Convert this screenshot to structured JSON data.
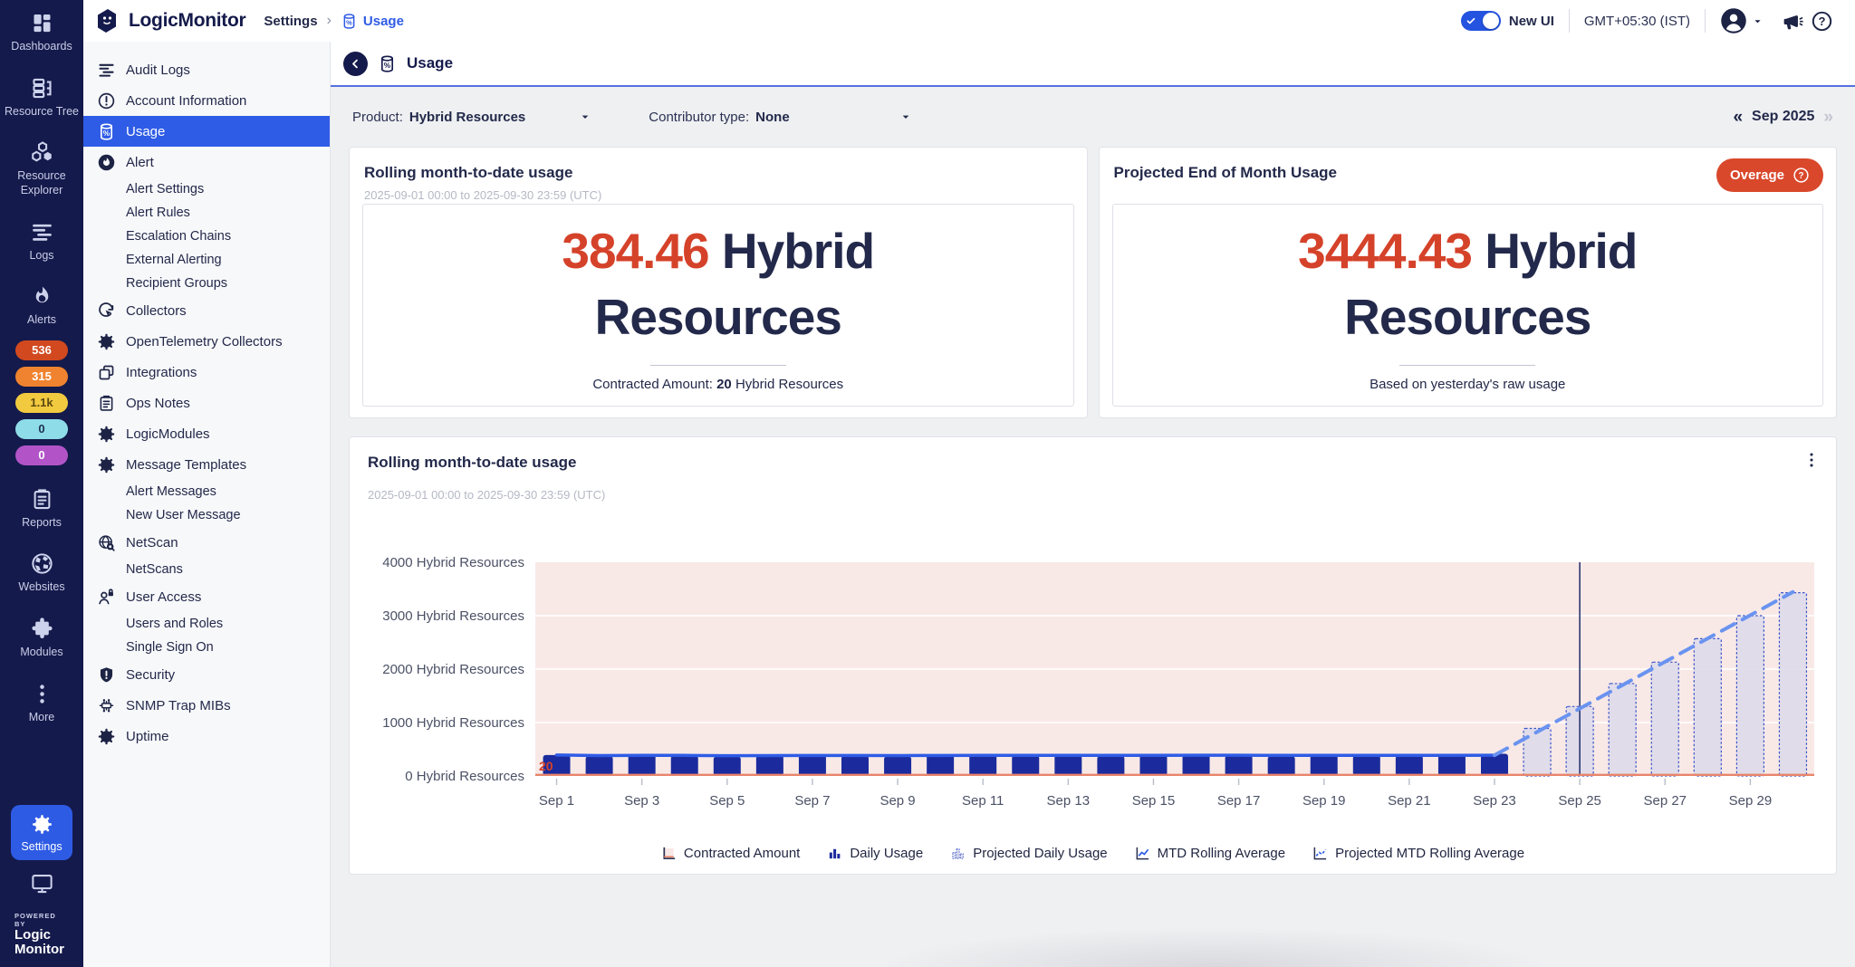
{
  "header": {
    "logo_text": "LogicMonitor",
    "breadcrumb_section": "Settings",
    "breadcrumb_sep": "›",
    "breadcrumb_page": "Usage",
    "new_ui_label": "New UI",
    "timezone": "GMT+05:30 (IST)"
  },
  "rail": {
    "top_items": [
      {
        "id": "dashboards",
        "label": "Dashboards",
        "icon": "grid"
      },
      {
        "id": "resource-tree",
        "label": "Resource Tree",
        "icon": "tree"
      },
      {
        "id": "resource-explorer",
        "label": "Resource Explorer",
        "icon": "hexagons"
      },
      {
        "id": "logs",
        "label": "Logs",
        "icon": "lines"
      },
      {
        "id": "alerts",
        "label": "Alerts",
        "icon": "flame"
      }
    ],
    "alert_badges": [
      {
        "count": "536",
        "bg": "#d2491f",
        "fg": "#ffffff"
      },
      {
        "count": "315",
        "bg": "#f0832f",
        "fg": "#ffffff"
      },
      {
        "count": "1.1k",
        "bg": "#f2ca3f",
        "fg": "#5b4a12"
      },
      {
        "count": "0",
        "bg": "#8edce8",
        "fg": "#1d3150"
      },
      {
        "count": "0",
        "bg": "#b254c8",
        "fg": "#ffffff"
      }
    ],
    "mid_items": [
      {
        "id": "reports",
        "label": "Reports",
        "icon": "clipboard"
      },
      {
        "id": "websites",
        "label": "Websites",
        "icon": "globe"
      },
      {
        "id": "modules",
        "label": "Modules",
        "icon": "puzzle"
      },
      {
        "id": "more",
        "label": "More",
        "icon": "dotsv"
      }
    ],
    "settings_label": "Settings",
    "powered_by": "POWERED BY",
    "brand_line1": "Logic",
    "brand_line2": "Monitor"
  },
  "sidebar": {
    "items": [
      {
        "label": "Audit Logs",
        "icon": "lines",
        "level": 0
      },
      {
        "label": "Account Information",
        "icon": "bang-circle",
        "level": 0
      },
      {
        "label": "Usage",
        "icon": "cylinder",
        "level": 0,
        "selected": true
      },
      {
        "label": "Alert",
        "icon": "flame-circle",
        "level": 0
      },
      {
        "label": "Alert Settings",
        "level": 1
      },
      {
        "label": "Alert Rules",
        "level": 1
      },
      {
        "label": "Escalation Chains",
        "level": 1
      },
      {
        "label": "External Alerting",
        "level": 1
      },
      {
        "label": "Recipient Groups",
        "level": 1
      },
      {
        "label": "Collectors",
        "icon": "collector",
        "level": 0
      },
      {
        "label": "OpenTelemetry Collectors",
        "icon": "gear",
        "level": 0
      },
      {
        "label": "Integrations",
        "icon": "integrations",
        "level": 0
      },
      {
        "label": "Ops Notes",
        "icon": "clipboard",
        "level": 0
      },
      {
        "label": "LogicModules",
        "icon": "gear",
        "level": 0
      },
      {
        "label": "Message Templates",
        "icon": "gear",
        "level": 0
      },
      {
        "label": "Alert Messages",
        "level": 1
      },
      {
        "label": "New User Message",
        "level": 1
      },
      {
        "label": "NetScan",
        "icon": "netscan",
        "level": 0
      },
      {
        "label": "NetScans",
        "level": 1
      },
      {
        "label": "User Access",
        "icon": "user-access",
        "level": 0
      },
      {
        "label": "Users and Roles",
        "level": 1
      },
      {
        "label": "Single Sign On",
        "level": 1
      },
      {
        "label": "Security",
        "icon": "security",
        "level": 0
      },
      {
        "label": "SNMP Trap MIBs",
        "icon": "snmp",
        "level": 0
      },
      {
        "label": "Uptime",
        "icon": "gear",
        "level": 0
      }
    ]
  },
  "titlebar": {
    "title": "Usage"
  },
  "filters": {
    "product_label": "Product:",
    "product_value": "Hybrid Resources",
    "contributor_label": "Contributor type:",
    "contributor_value": "None",
    "period": "Sep 2025",
    "prev": "«",
    "next": "»"
  },
  "cards": {
    "mtd": {
      "title": "Rolling month-to-date usage",
      "subtitle": "2025-09-01 00:00 to 2025-09-30 23:59 (UTC)",
      "value": "384.46",
      "unit": "Hybrid Resources",
      "footer_label": "Contracted Amount:",
      "footer_value": "20",
      "footer_unit": "Hybrid Resources"
    },
    "projected": {
      "title": "Projected End of Month Usage",
      "badge": "Overage",
      "value": "3444.43",
      "unit": "Hybrid Resources",
      "footer": "Based on yesterday's raw usage"
    }
  },
  "chart_data": {
    "type": "bar",
    "title": "Rolling month-to-date usage",
    "subtitle": "2025-09-01 00:00 to 2025-09-30 23:59 (UTC)",
    "unit": "Hybrid Resources",
    "ylim": [
      0,
      4000
    ],
    "yticks": [
      0,
      1000,
      2000,
      3000,
      4000
    ],
    "xticks_every": 2,
    "categories": [
      "Sep 1",
      "Sep 2",
      "Sep 3",
      "Sep 4",
      "Sep 5",
      "Sep 6",
      "Sep 7",
      "Sep 8",
      "Sep 9",
      "Sep 10",
      "Sep 11",
      "Sep 12",
      "Sep 13",
      "Sep 14",
      "Sep 15",
      "Sep 16",
      "Sep 17",
      "Sep 18",
      "Sep 19",
      "Sep 20",
      "Sep 21",
      "Sep 22",
      "Sep 23",
      "Sep 24",
      "Sep 25",
      "Sep 26",
      "Sep 27",
      "Sep 28",
      "Sep 29",
      "Sep 30"
    ],
    "contracted_amount": 20,
    "annotation": "20",
    "today": "Sep 25",
    "series": [
      {
        "name": "Daily Usage",
        "type": "bar",
        "values": [
          392,
          371,
          396,
          381,
          362,
          386,
          401,
          382,
          366,
          396,
          406,
          386,
          391,
          376,
          396,
          401,
          386,
          371,
          399,
          389,
          381,
          393,
          416,
          null,
          null,
          null,
          null,
          null,
          null,
          null
        ]
      },
      {
        "name": "Projected Daily Usage",
        "type": "bar-dashed",
        "values": [
          null,
          null,
          null,
          null,
          null,
          null,
          null,
          null,
          null,
          null,
          null,
          null,
          null,
          null,
          null,
          null,
          null,
          null,
          null,
          null,
          null,
          null,
          null,
          890,
          1300,
          1730,
          2130,
          2570,
          3000,
          3430
        ]
      },
      {
        "name": "MTD Rolling Average",
        "type": "line",
        "values": [
          392,
          382,
          386,
          385,
          380,
          381,
          384,
          384,
          382,
          383,
          385,
          385,
          386,
          385,
          386,
          387,
          387,
          386,
          386,
          386,
          386,
          386,
          388,
          null,
          null,
          null,
          null,
          null,
          null,
          null
        ]
      },
      {
        "name": "Projected MTD Rolling Average",
        "type": "line-dashed",
        "values": [
          null,
          null,
          null,
          null,
          null,
          null,
          null,
          null,
          null,
          null,
          null,
          null,
          null,
          null,
          null,
          null,
          null,
          null,
          null,
          null,
          null,
          null,
          388,
          825,
          1262,
          1700,
          2137,
          2574,
          3008,
          3444
        ]
      }
    ],
    "legend": [
      {
        "label": "Contracted Amount",
        "icon": "legend-contracted"
      },
      {
        "label": "Daily Usage",
        "icon": "legend-daily"
      },
      {
        "label": "Projected Daily Usage",
        "icon": "legend-projected-daily"
      },
      {
        "label": "MTD Rolling Average",
        "icon": "legend-mtd"
      },
      {
        "label": "Projected MTD Rolling Average",
        "icon": "legend-projected-mtd"
      }
    ],
    "colors": {
      "bar": "#1b2b9d",
      "projected_bar_fill": "#dcd9ea",
      "projected_bar_stroke": "#3a55c8",
      "line": "#2f5ce6",
      "projected_line": "#6a93f0",
      "contracted": "#e8846b",
      "plot_bg": "#f8e9e7",
      "today_line": "#2a3670",
      "annotation_color": "#d5422a"
    }
  }
}
